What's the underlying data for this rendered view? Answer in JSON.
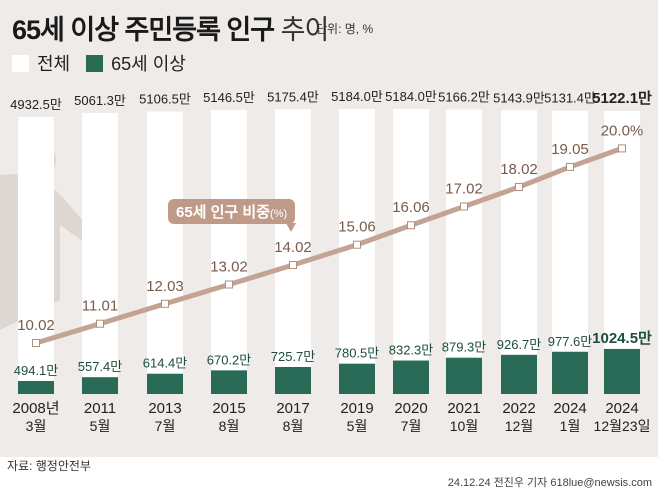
{
  "header": {
    "title_bold": "65세 이상 주민등록 인구",
    "title_light": "추이",
    "unit": "단위: 명, %"
  },
  "legend": [
    {
      "label": "전체",
      "color": "#ffffff"
    },
    {
      "label": "65세 이상",
      "color": "#2a6b57"
    }
  ],
  "line_label": {
    "main": "65세 인구 비중",
    "unit": "(%)"
  },
  "source": "자료: 행정안전부",
  "credit": "24.12.24 전진우 기자 618lue@newsis.com",
  "chart_data": {
    "type": "bar",
    "title": "65세 이상 주민등록 인구 추이",
    "categories": [
      [
        "2008년",
        "3월"
      ],
      [
        "2011",
        "5월"
      ],
      [
        "2013",
        "7월"
      ],
      [
        "2015",
        "8월"
      ],
      [
        "2017",
        "8월"
      ],
      [
        "2019",
        "5월"
      ],
      [
        "2020",
        "7월"
      ],
      [
        "2021",
        "10월"
      ],
      [
        "2022",
        "12월"
      ],
      [
        "2024",
        "1월"
      ],
      [
        "2024",
        "12월23일"
      ]
    ],
    "series": [
      {
        "name": "전체",
        "unit": "만",
        "color": "#ffffff",
        "values": [
          4932.5,
          5061.3,
          5106.5,
          5146.5,
          5175.4,
          5184.0,
          5184.0,
          5166.2,
          5143.9,
          5131.4,
          5122.1
        ]
      },
      {
        "name": "65세 이상",
        "unit": "만",
        "color": "#2a6b57",
        "values": [
          494.1,
          557.4,
          614.4,
          670.2,
          725.7,
          780.5,
          832.3,
          879.3,
          926.7,
          977.6,
          1024.5
        ]
      },
      {
        "name": "65세 인구 비중(%)",
        "type": "line",
        "color": "#c4a395",
        "values": [
          10.02,
          11.01,
          12.03,
          13.02,
          14.02,
          15.06,
          16.06,
          17.02,
          18.02,
          19.05,
          20.0
        ],
        "labels": [
          "10.02",
          "11.01",
          "12.03",
          "13.02",
          "14.02",
          "15.06",
          "16.06",
          "17.02",
          "18.02",
          "19.05",
          "20.0%"
        ]
      }
    ]
  }
}
